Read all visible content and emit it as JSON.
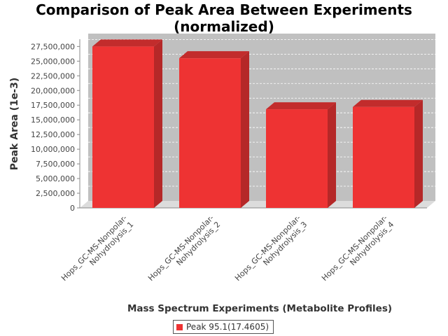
{
  "chart_data": {
    "type": "bar",
    "title": "Comparison of Peak Area Between Experiments",
    "subtitle": "(normalized)",
    "xlabel": "Mass Spectrum Experiments (Metabolite Profiles)",
    "ylabel": "Peak Area (1e-3)",
    "ylim": [
      0,
      28500000
    ],
    "yticks": [
      0,
      2500000,
      5000000,
      7500000,
      10000000,
      12500000,
      15000000,
      17500000,
      20000000,
      22500000,
      25000000,
      27500000
    ],
    "ytick_labels": [
      "0",
      "2,500,000",
      "5,000,000",
      "7,500,000",
      "10,000,000",
      "12,500,000",
      "15,000,000",
      "17,500,000",
      "20,000,000",
      "22,500,000",
      "25,000,000",
      "27,500,000"
    ],
    "categories": [
      [
        "Hops_GC-MS-Nonpolar-",
        "Nohydrolysis_1"
      ],
      [
        "Hops_GC-MS-Nonpolar-",
        "Nohydrolysis_2"
      ],
      [
        "Hops_GC-MS-Nonpolar-",
        "Nohydrolysis_3"
      ],
      [
        "Hops_GC-MS-Nonpolar-",
        "Nohydrolysis_4"
      ]
    ],
    "series": [
      {
        "name": "Peak 95.1(17.4605)",
        "color": "#ee3333",
        "values": [
          27500000,
          25500000,
          16800000,
          17200000
        ]
      }
    ],
    "grid": true,
    "legend_position": "bottom",
    "style": "3d",
    "plot_background": "#c0c0c0"
  }
}
